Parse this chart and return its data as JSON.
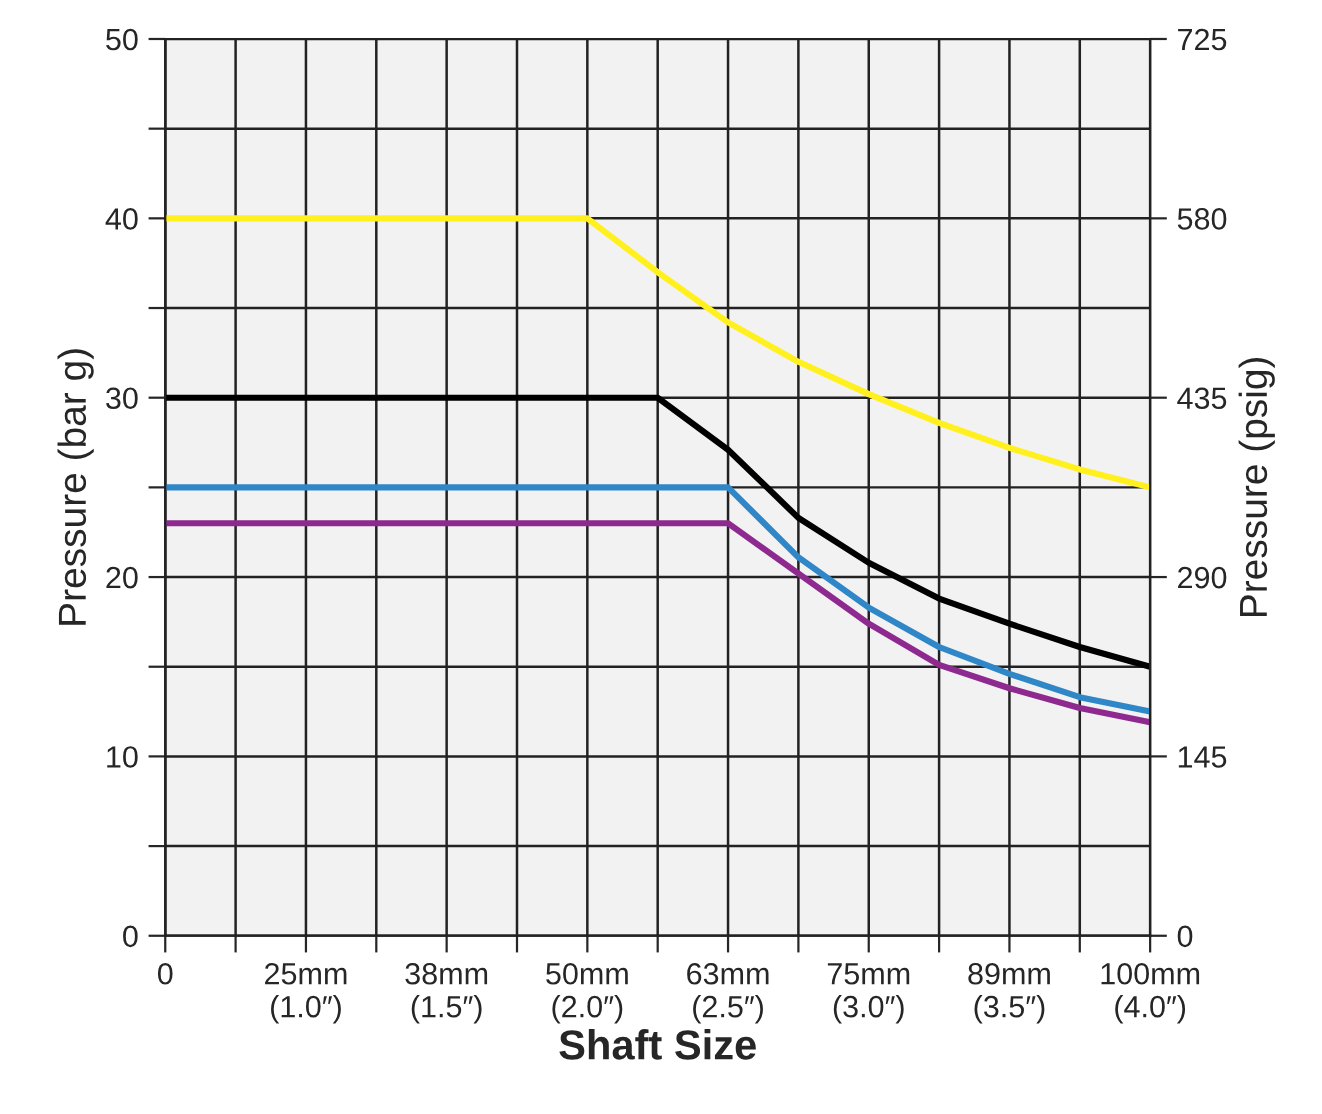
{
  "chart_data": {
    "type": "line",
    "xlabel": "Shaft Size",
    "ylabel": "Pressure (bar g)",
    "y2label": "Pressure (psig)",
    "categories": [
      "0",
      null,
      "25mm\n(1.0″)",
      null,
      "38mm\n(1.5″)",
      null,
      "50mm\n(2.0″)",
      null,
      "63mm\n(2.5″)",
      null,
      "75mm\n(3.0″)",
      null,
      "89mm\n(3.5″)",
      null,
      "100mm\n(4.0″)"
    ],
    "ylim": [
      0,
      50
    ],
    "yticks": [
      0,
      {
        "value": 5,
        "label": null
      },
      10,
      {
        "value": 15,
        "label": null
      },
      20,
      {
        "value": 25,
        "label": null
      },
      30,
      {
        "value": 35,
        "label": null
      },
      40,
      {
        "value": 45,
        "label": null
      },
      50
    ],
    "y2lim": [
      0,
      725
    ],
    "y2ticks": [
      0,
      145,
      290,
      435,
      580,
      725
    ],
    "grid": true,
    "series": [
      {
        "color": "#fff01e",
        "values": [
          40,
          40,
          40,
          40,
          40,
          40,
          40,
          37,
          34.2,
          32,
          30.2,
          28.6,
          27.2,
          26,
          25
        ]
      },
      {
        "color": "#000000",
        "values": [
          30,
          30,
          30,
          30,
          30,
          30,
          30,
          30,
          27.1,
          23.3,
          20.8,
          18.8,
          17.4,
          16.1,
          15
        ]
      },
      {
        "color": "#2f87c8",
        "values": [
          25,
          25,
          25,
          25,
          25,
          25,
          25,
          25,
          25,
          21.1,
          18.3,
          16.1,
          14.6,
          13.3,
          12.5
        ]
      },
      {
        "color": "#8e2a8f",
        "values": [
          23,
          23,
          23,
          23,
          23,
          23,
          23,
          23,
          23,
          20.2,
          17.4,
          15.1,
          13.8,
          12.7,
          11.9
        ]
      }
    ]
  }
}
